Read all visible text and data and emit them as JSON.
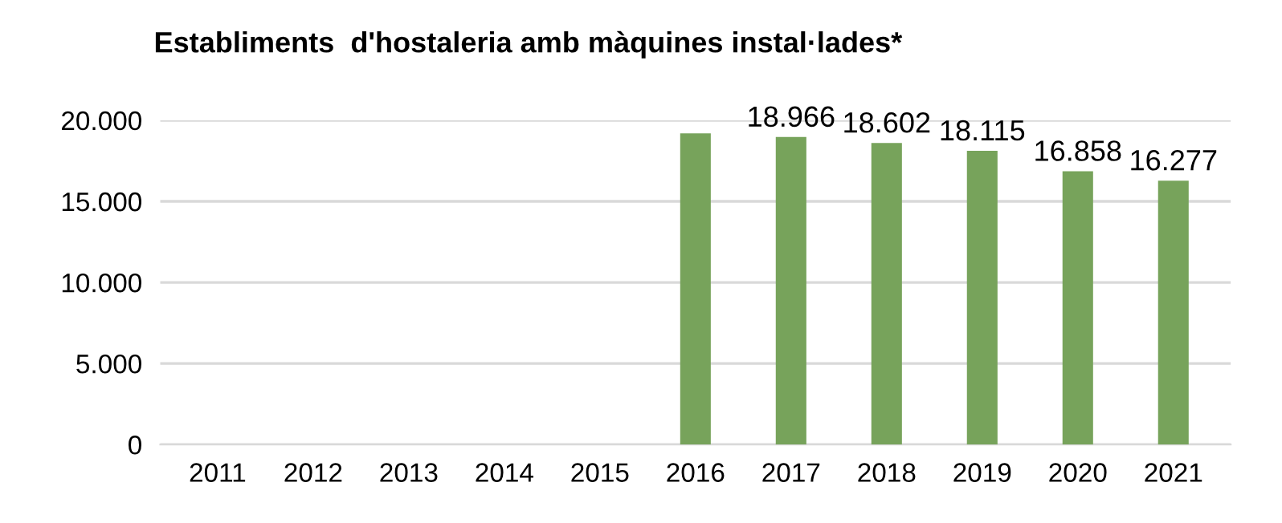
{
  "chart_data": {
    "type": "bar",
    "title": "Establiments  d'hostaleria amb màquines instal·lades*",
    "categories": [
      "2011",
      "2012",
      "2013",
      "2014",
      "2015",
      "2016",
      "2017",
      "2018",
      "2019",
      "2020",
      "2021"
    ],
    "values": [
      null,
      null,
      null,
      null,
      null,
      19200,
      18966,
      18602,
      18115,
      16858,
      16277
    ],
    "value_labels": [
      null,
      null,
      null,
      null,
      null,
      null,
      "18.966",
      "18.602",
      "18.115",
      "16.858",
      "16.277"
    ],
    "color": "#77a35b",
    "ylim": [
      0,
      20000
    ],
    "yticks": [
      {
        "value": 0,
        "label": "0"
      },
      {
        "value": 5000,
        "label": "5.000"
      },
      {
        "value": 10000,
        "label": "10.000"
      },
      {
        "value": 15000,
        "label": "15.000"
      },
      {
        "value": 20000,
        "label": "20.000"
      }
    ],
    "grid": "y"
  }
}
